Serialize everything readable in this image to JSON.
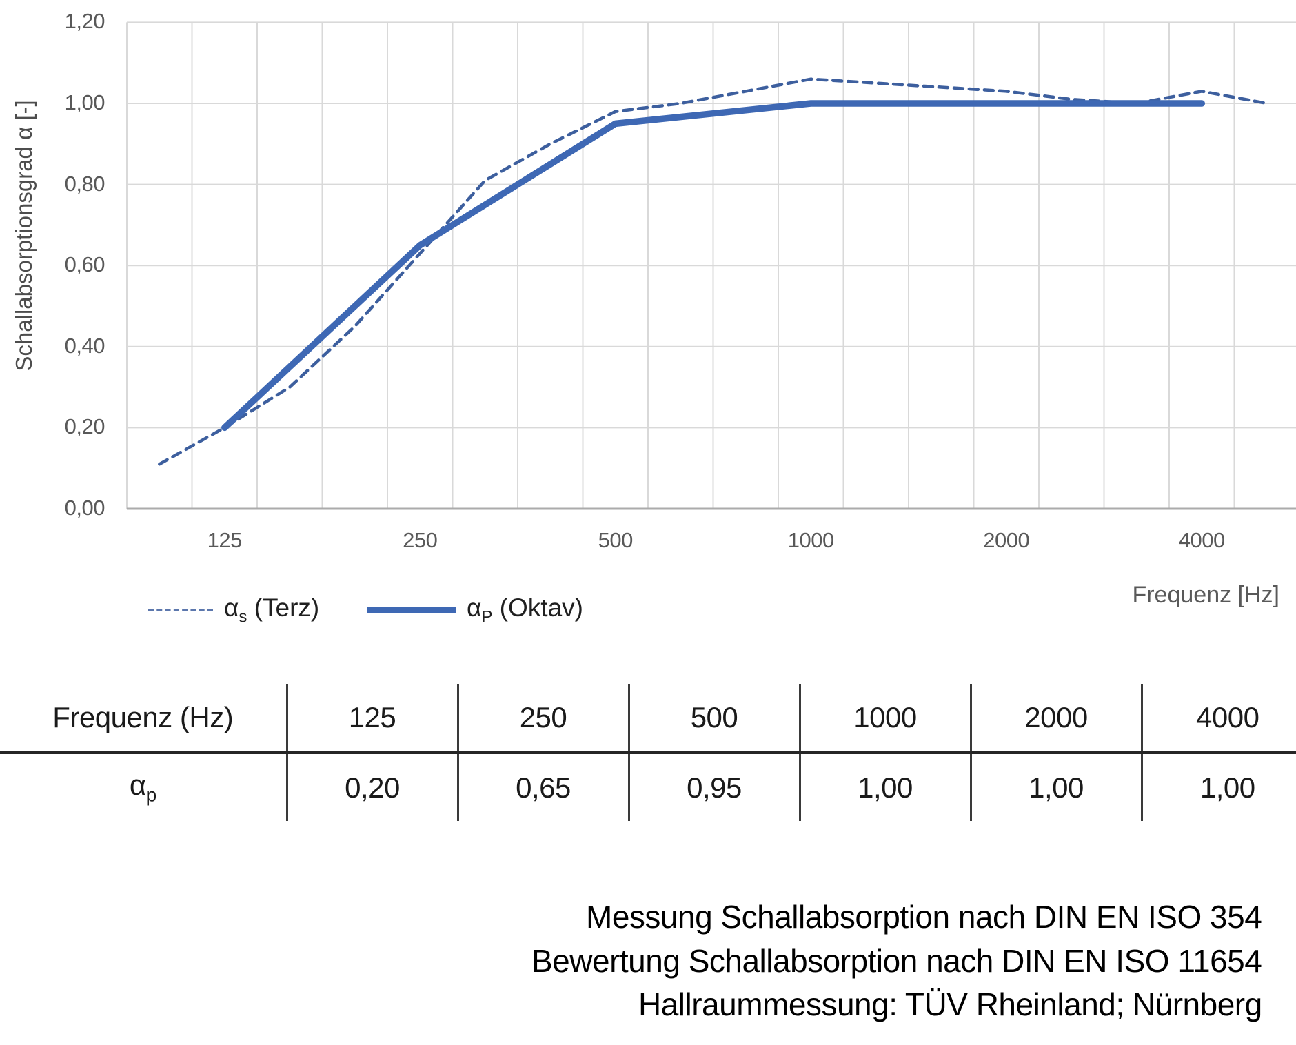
{
  "chart": {
    "y_axis_title": "Schallabsorptionsgrad α [-]",
    "x_axis_title": "Frequenz [Hz]",
    "y_ticks": [
      "1,20",
      "1,00",
      "0,80",
      "0,60",
      "0,40",
      "0,20",
      "0,00"
    ],
    "legend": [
      {
        "symbol": "α",
        "sub": "s",
        "rest": " (Terz)",
        "style": "dashed"
      },
      {
        "symbol": "α",
        "sub": "P",
        "rest": " (Oktav)",
        "style": "solid"
      }
    ],
    "colors": {
      "solid_line": "#3e68b4",
      "dashed_line": "#3d5f9e",
      "gridline": "#d9d9d9",
      "axis_line": "#ababab",
      "tick_text": "#595959"
    }
  },
  "chart_data": {
    "type": "line",
    "categories": [
      100,
      125,
      160,
      200,
      250,
      315,
      400,
      500,
      630,
      800,
      1000,
      1250,
      1600,
      2000,
      2500,
      3150,
      4000,
      5000
    ],
    "x_tick_labels": [
      "125",
      "250",
      "500",
      "1000",
      "2000",
      "4000"
    ],
    "xlabel": "Frequenz [Hz]",
    "ylabel": "Schallabsorptionsgrad α [-]",
    "ylim": [
      0,
      1.2
    ],
    "y_tick_step": 0.2,
    "grid": "both",
    "legend_position": "bottom-left",
    "series": [
      {
        "name": "αs (Terz)",
        "style": "dashed",
        "x": [
          100,
          125,
          160,
          200,
          250,
          315,
          400,
          500,
          630,
          800,
          1000,
          1250,
          1600,
          2000,
          2500,
          3150,
          4000,
          5000
        ],
        "values": [
          0.11,
          0.2,
          0.3,
          0.45,
          0.63,
          0.81,
          0.9,
          0.98,
          1.0,
          1.03,
          1.06,
          1.05,
          1.04,
          1.03,
          1.01,
          1.0,
          1.03,
          1.0
        ]
      },
      {
        "name": "αP (Oktav)",
        "style": "solid",
        "x": [
          125,
          250,
          500,
          1000,
          2000,
          4000
        ],
        "values": [
          0.2,
          0.65,
          0.95,
          1.0,
          1.0,
          1.0
        ]
      }
    ]
  },
  "table": {
    "header_label": "Frequenz (Hz)",
    "header_values": [
      "125",
      "250",
      "500",
      "1000",
      "2000",
      "4000"
    ],
    "row_symbol": "α",
    "row_sub": "p",
    "values": [
      "0,20",
      "0,65",
      "0,95",
      "1,00",
      "1,00",
      "1,00"
    ]
  },
  "footer": {
    "lines": [
      "Messung Schallabsorption nach DIN EN ISO 354",
      "Bewertung Schallabsorption nach DIN EN ISO 11654",
      "Hallraummessung: TÜV Rheinland; Nürnberg"
    ]
  }
}
